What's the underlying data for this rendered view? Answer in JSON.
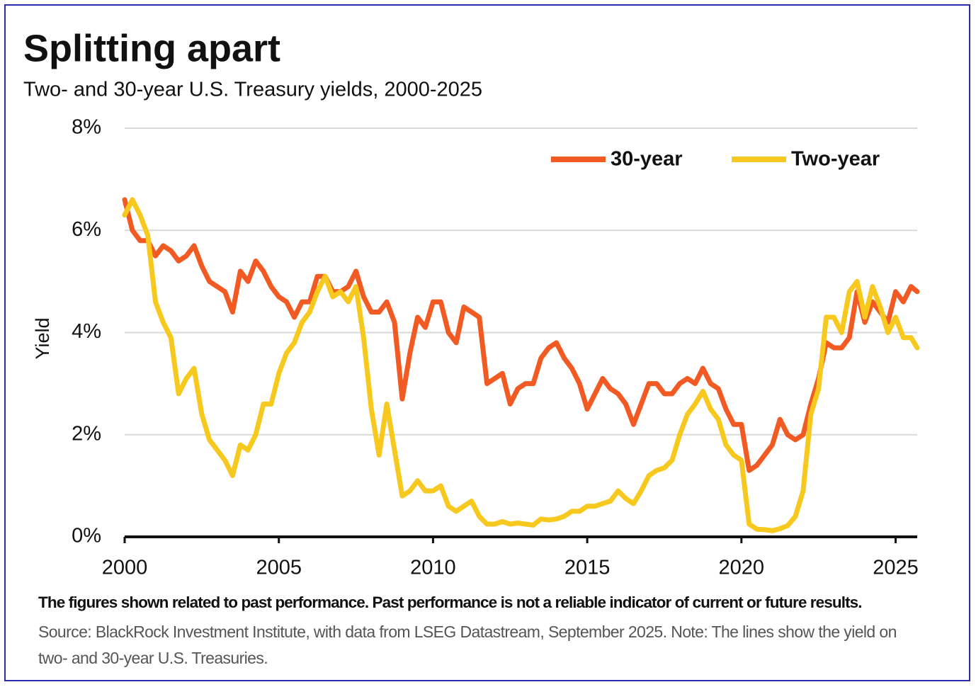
{
  "chart_data": {
    "type": "line",
    "title": "Splitting apart",
    "subtitle": "Two- and 30-year U.S. Treasury yields, 2000-2025",
    "y_label": "Yield",
    "disclaimer": "The figures shown related to past performance. Past performance is not a reliable indicator of current or future results.",
    "source": "Source: BlackRock Investment Institute, with data from LSEG Datastream, September 2025. Note: The lines show the yield on two- and 30-year U.S. Treasuries.",
    "legend": "upper right",
    "grid": true,
    "xlim": [
      2000,
      2025.7
    ],
    "ylim": [
      0,
      8
    ],
    "xticks": [
      2000,
      2005,
      2010,
      2015,
      2020,
      2025
    ],
    "yticks": [
      {
        "value": 0,
        "label": "0%"
      },
      {
        "value": 2,
        "label": "2%"
      },
      {
        "value": 4,
        "label": "4%"
      },
      {
        "value": 6,
        "label": "6%"
      },
      {
        "value": 8,
        "label": "8%"
      }
    ],
    "x": [
      2000.0,
      2000.25,
      2000.5,
      2000.75,
      2001.0,
      2001.25,
      2001.5,
      2001.75,
      2002.0,
      2002.25,
      2002.5,
      2002.75,
      2003.0,
      2003.25,
      2003.5,
      2003.75,
      2004.0,
      2004.25,
      2004.5,
      2004.75,
      2005.0,
      2005.25,
      2005.5,
      2005.75,
      2006.0,
      2006.25,
      2006.5,
      2006.75,
      2007.0,
      2007.25,
      2007.5,
      2007.75,
      2008.0,
      2008.25,
      2008.5,
      2008.75,
      2009.0,
      2009.25,
      2009.5,
      2009.75,
      2010.0,
      2010.25,
      2010.5,
      2010.75,
      2011.0,
      2011.25,
      2011.5,
      2011.75,
      2012.0,
      2012.25,
      2012.5,
      2012.75,
      2013.0,
      2013.25,
      2013.5,
      2013.75,
      2014.0,
      2014.25,
      2014.5,
      2014.75,
      2015.0,
      2015.25,
      2015.5,
      2015.75,
      2016.0,
      2016.25,
      2016.5,
      2016.75,
      2017.0,
      2017.25,
      2017.5,
      2017.75,
      2018.0,
      2018.25,
      2018.5,
      2018.75,
      2019.0,
      2019.25,
      2019.5,
      2019.75,
      2020.0,
      2020.25,
      2020.5,
      2020.75,
      2021.0,
      2021.25,
      2021.5,
      2021.75,
      2022.0,
      2022.25,
      2022.5,
      2022.75,
      2023.0,
      2023.25,
      2023.5,
      2023.75,
      2024.0,
      2024.25,
      2024.5,
      2024.75,
      2025.0,
      2025.25,
      2025.5,
      2025.7
    ],
    "series": [
      {
        "name": "30-year",
        "color": "#f15a22",
        "values": [
          6.6,
          6.0,
          5.8,
          5.8,
          5.5,
          5.7,
          5.6,
          5.4,
          5.5,
          5.7,
          5.3,
          5.0,
          4.9,
          4.8,
          4.4,
          5.2,
          5.0,
          5.4,
          5.2,
          4.9,
          4.7,
          4.6,
          4.3,
          4.6,
          4.6,
          5.1,
          5.1,
          4.8,
          4.8,
          4.9,
          5.2,
          4.7,
          4.4,
          4.4,
          4.6,
          4.2,
          2.7,
          3.6,
          4.3,
          4.1,
          4.6,
          4.6,
          4.0,
          3.8,
          4.5,
          4.4,
          4.3,
          3.0,
          3.1,
          3.2,
          2.6,
          2.9,
          3.0,
          3.0,
          3.5,
          3.7,
          3.8,
          3.5,
          3.3,
          3.0,
          2.5,
          2.8,
          3.1,
          2.9,
          2.8,
          2.6,
          2.2,
          2.6,
          3.0,
          3.0,
          2.8,
          2.8,
          3.0,
          3.1,
          3.0,
          3.3,
          3.0,
          2.9,
          2.5,
          2.2,
          2.2,
          1.3,
          1.4,
          1.6,
          1.8,
          2.3,
          2.0,
          1.9,
          2.0,
          2.6,
          3.1,
          3.8,
          3.7,
          3.7,
          3.9,
          4.8,
          4.2,
          4.6,
          4.4,
          4.2,
          4.8,
          4.6,
          4.9,
          4.8
        ]
      },
      {
        "name": "Two-year",
        "color": "#f7c91f",
        "values": [
          6.3,
          6.6,
          6.3,
          5.9,
          4.6,
          4.2,
          3.9,
          2.8,
          3.1,
          3.3,
          2.4,
          1.9,
          1.7,
          1.5,
          1.2,
          1.8,
          1.7,
          2.0,
          2.6,
          2.6,
          3.2,
          3.6,
          3.8,
          4.2,
          4.4,
          4.8,
          5.1,
          4.7,
          4.8,
          4.6,
          4.9,
          3.9,
          2.5,
          1.6,
          2.6,
          1.7,
          0.8,
          0.9,
          1.1,
          0.9,
          0.9,
          1.0,
          0.6,
          0.5,
          0.6,
          0.7,
          0.4,
          0.25,
          0.25,
          0.3,
          0.25,
          0.27,
          0.25,
          0.23,
          0.35,
          0.33,
          0.35,
          0.4,
          0.5,
          0.5,
          0.6,
          0.6,
          0.65,
          0.7,
          0.9,
          0.75,
          0.65,
          0.9,
          1.2,
          1.3,
          1.35,
          1.5,
          2.0,
          2.4,
          2.6,
          2.85,
          2.5,
          2.3,
          1.8,
          1.6,
          1.5,
          0.25,
          0.15,
          0.14,
          0.12,
          0.16,
          0.22,
          0.4,
          0.9,
          2.4,
          2.9,
          4.3,
          4.3,
          4.0,
          4.8,
          5.0,
          4.3,
          4.9,
          4.5,
          4.0,
          4.3,
          3.9,
          3.9,
          3.7
        ]
      }
    ]
  }
}
